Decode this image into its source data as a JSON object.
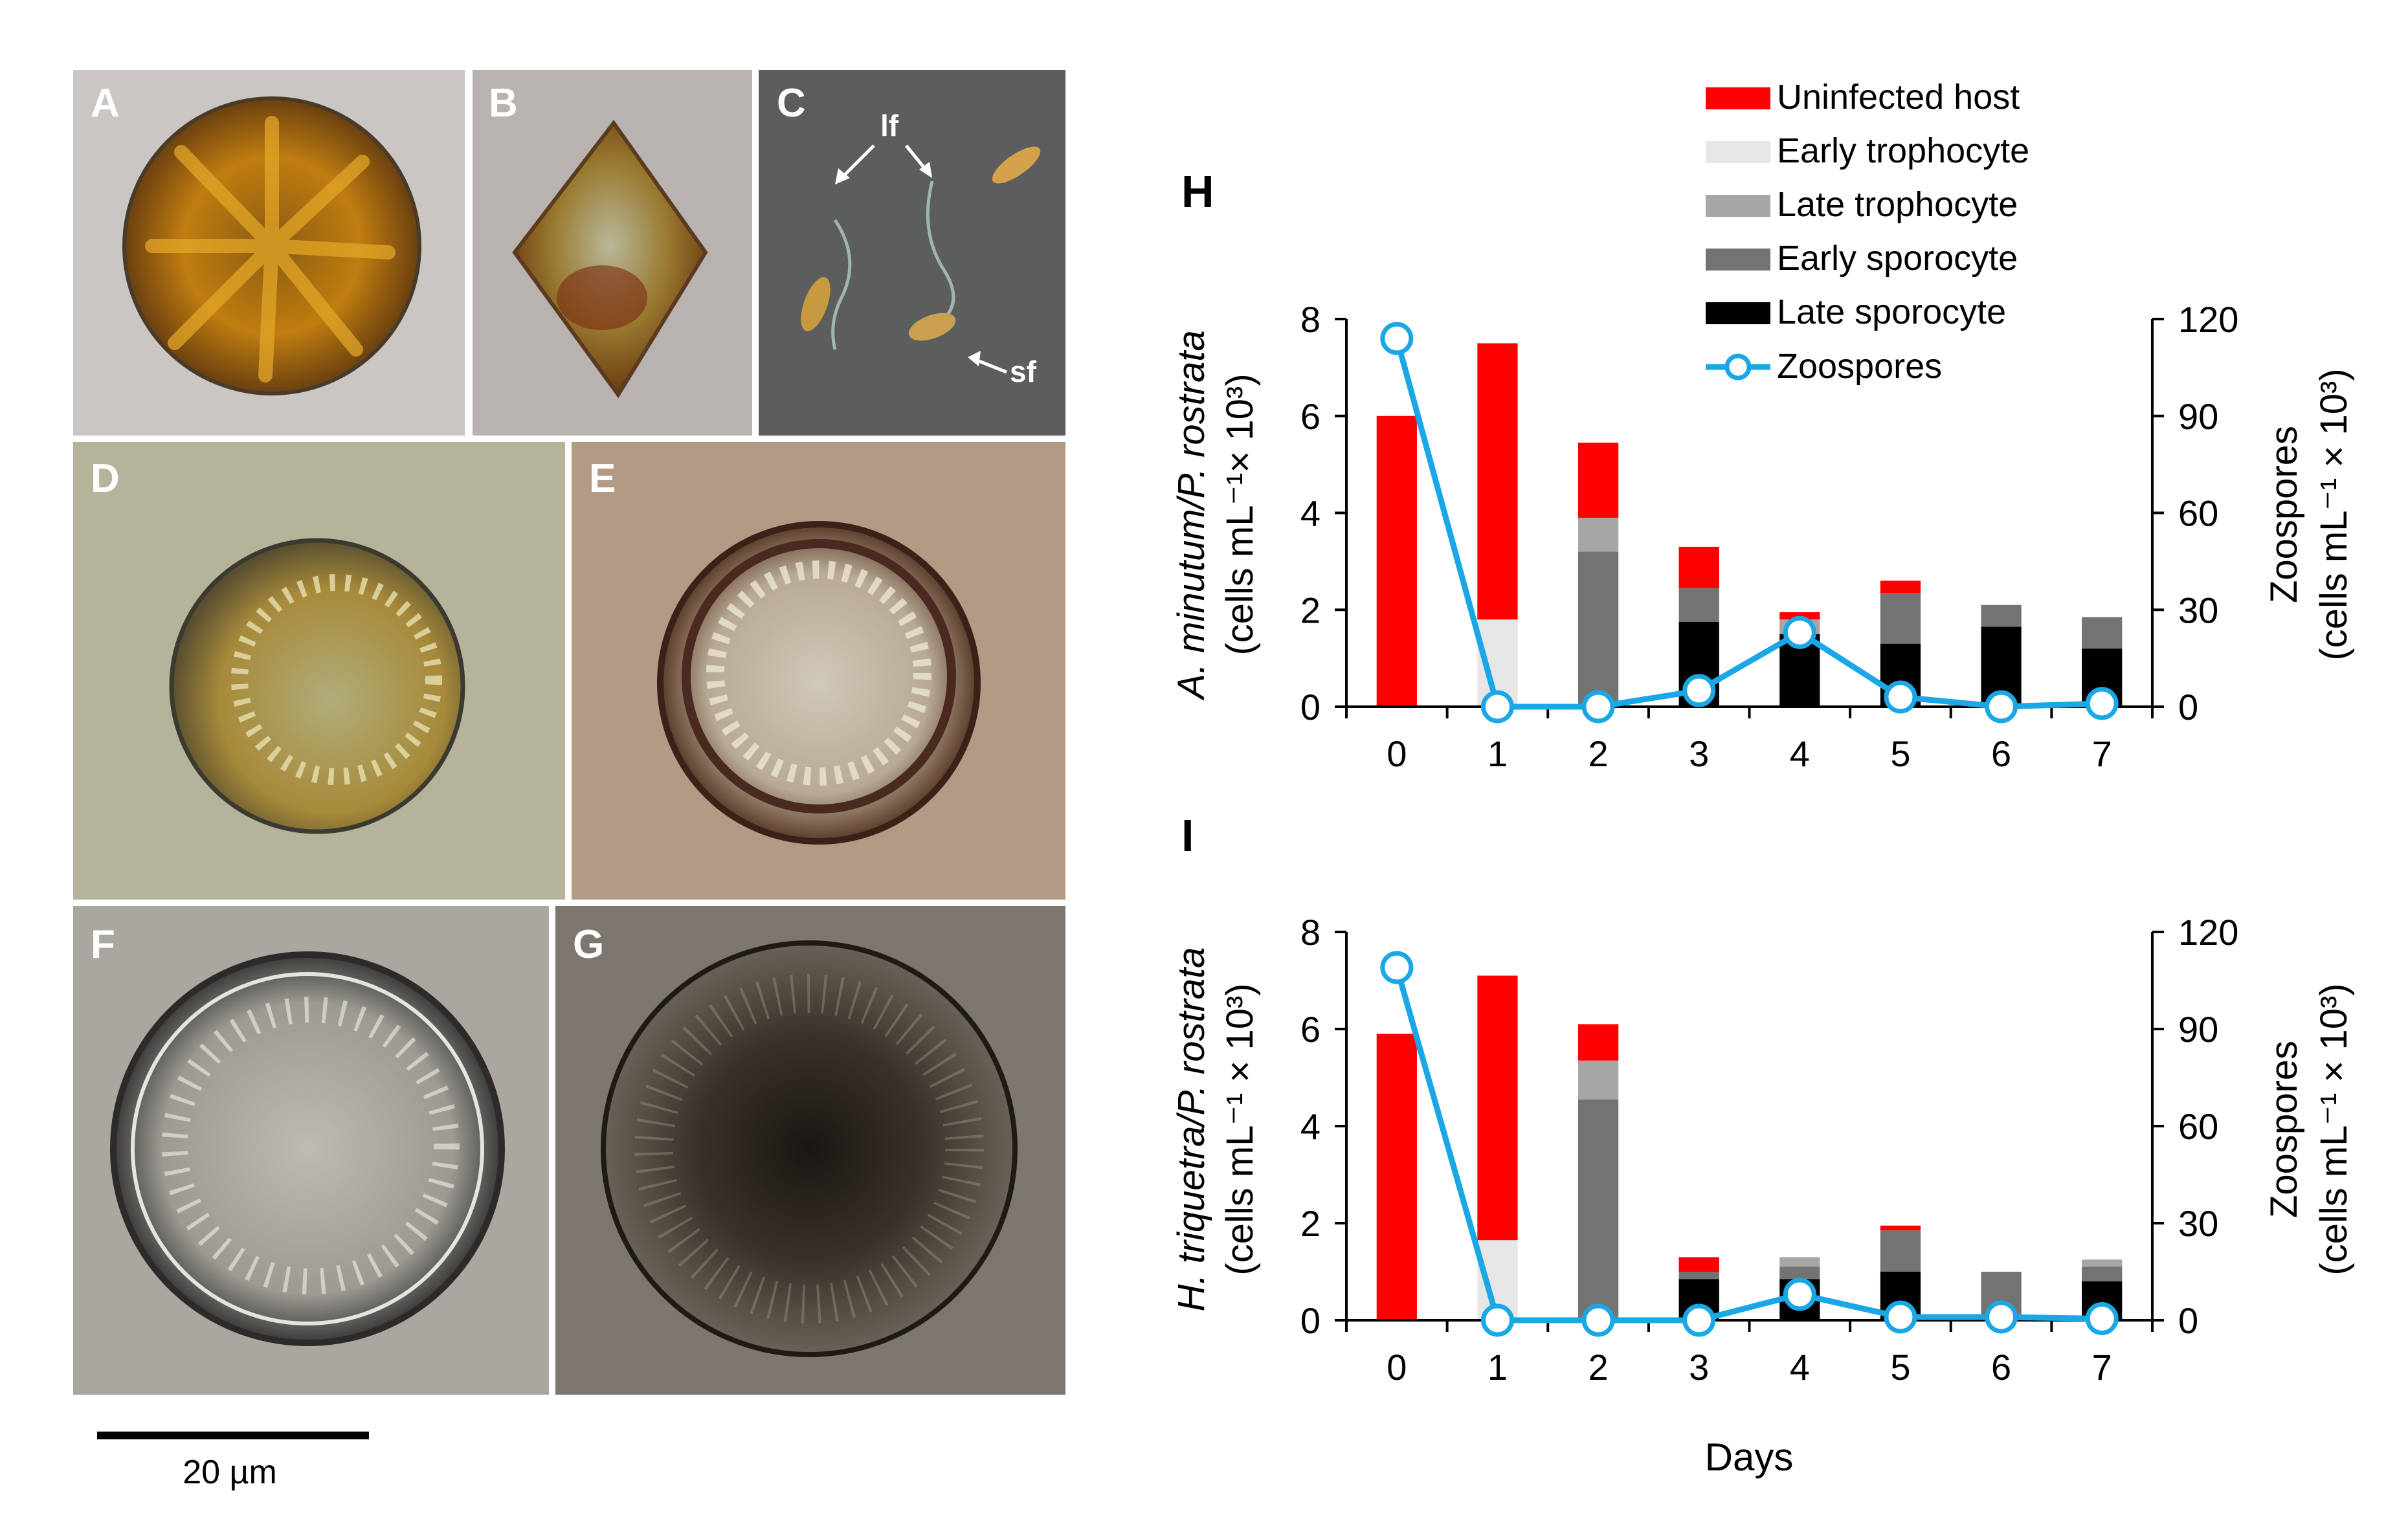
{
  "micrographs": {
    "panels": [
      {
        "letter": "A",
        "bg": "#c9c6c4"
      },
      {
        "letter": "B",
        "bg": "#b8b3ae"
      },
      {
        "letter": "C",
        "bg": "#5c5e5d"
      },
      {
        "letter": "D",
        "bg": "#b5b49a"
      },
      {
        "letter": "E",
        "bg": "#b39a84"
      },
      {
        "letter": "F",
        "bg": "#a9a79f"
      },
      {
        "letter": "G",
        "bg": "#7e776f"
      }
    ],
    "flagellum_labels": {
      "long": "lf",
      "short": "sf"
    },
    "scale_bar_label": "20 µm"
  },
  "legend": {
    "items": [
      {
        "label": "Uninfected host",
        "color": "#ff0000",
        "kind": "bar"
      },
      {
        "label": "Early trophocyte",
        "color": "#e6e6e6",
        "kind": "bar"
      },
      {
        "label": "Late trophocyte",
        "color": "#a6a6a6",
        "kind": "bar"
      },
      {
        "label": "Early sporocyte",
        "color": "#737373",
        "kind": "bar"
      },
      {
        "label": "Late sporocyte",
        "color": "#000000",
        "kind": "bar"
      },
      {
        "label": "Zoospores",
        "color": "#1aa7e6",
        "kind": "line"
      }
    ]
  },
  "chart_data": [
    {
      "panel": "H",
      "type": "bar",
      "stacked": true,
      "categories": [
        "0",
        "1",
        "2",
        "3",
        "4",
        "5",
        "6",
        "7"
      ],
      "ylabel_line1": "A. minutum/P. rostrata",
      "ylabel_line2": "(cells mL⁻¹× 10³)",
      "y2label_line1": "Zoospores",
      "y2label_line2": "(cells mL⁻¹ × 10³)",
      "ylim": [
        0,
        8
      ],
      "yticks": [
        "0",
        "2",
        "4",
        "6",
        "8"
      ],
      "y2lim": [
        0,
        120
      ],
      "y2ticks": [
        "0",
        "30",
        "60",
        "90",
        "120"
      ],
      "xlabel": "",
      "series": [
        {
          "name": "Late sporocyte",
          "values": [
            0,
            0,
            0,
            1.75,
            1.5,
            1.3,
            1.65,
            1.2
          ]
        },
        {
          "name": "Early sporocyte",
          "values": [
            0,
            0,
            3.2,
            0.7,
            0,
            1.05,
            0.45,
            0.65
          ]
        },
        {
          "name": "Late trophocyte",
          "values": [
            0,
            0,
            0.7,
            0,
            0.3,
            0,
            0,
            0
          ]
        },
        {
          "name": "Early trophocyte",
          "values": [
            0,
            1.8,
            0,
            0,
            0,
            0,
            0,
            0
          ]
        },
        {
          "name": "Uninfected host",
          "values": [
            6.0,
            5.7,
            1.55,
            0.85,
            0.15,
            0.25,
            0,
            0
          ]
        }
      ],
      "line": {
        "name": "Zoospores",
        "values": [
          114,
          0,
          0,
          5,
          23,
          3,
          0,
          1
        ]
      }
    },
    {
      "panel": "I",
      "type": "bar",
      "stacked": true,
      "categories": [
        "0",
        "1",
        "2",
        "3",
        "4",
        "5",
        "6",
        "7"
      ],
      "ylabel_line1": "H. triquetra/P. rostrata",
      "ylabel_line2": "(cells mL⁻¹ × 10³)",
      "y2label_line1": "Zoospores",
      "y2label_line2": "(cells mL⁻¹ × 10³)",
      "ylim": [
        0,
        8
      ],
      "yticks": [
        "0",
        "2",
        "4",
        "6",
        "8"
      ],
      "y2lim": [
        0,
        120
      ],
      "y2ticks": [
        "0",
        "30",
        "60",
        "90",
        "120"
      ],
      "xlabel": "Days",
      "series": [
        {
          "name": "Late sporocyte",
          "values": [
            0,
            0,
            0,
            0.85,
            0.85,
            1.0,
            0,
            0.8
          ]
        },
        {
          "name": "Early sporocyte",
          "values": [
            0,
            0,
            4.55,
            0.15,
            0.25,
            0.85,
            1.0,
            0.3
          ]
        },
        {
          "name": "Late trophocyte",
          "values": [
            0,
            0,
            0.8,
            0,
            0.2,
            0,
            0,
            0.15
          ]
        },
        {
          "name": "Early trophocyte",
          "values": [
            0,
            1.65,
            0,
            0,
            0,
            0,
            0,
            0
          ]
        },
        {
          "name": "Uninfected host",
          "values": [
            5.9,
            5.45,
            0.75,
            0.3,
            0,
            0.1,
            0,
            0
          ]
        }
      ],
      "line": {
        "name": "Zoospores",
        "values": [
          109,
          0,
          0,
          0,
          8,
          1,
          1,
          0.5
        ]
      }
    }
  ]
}
